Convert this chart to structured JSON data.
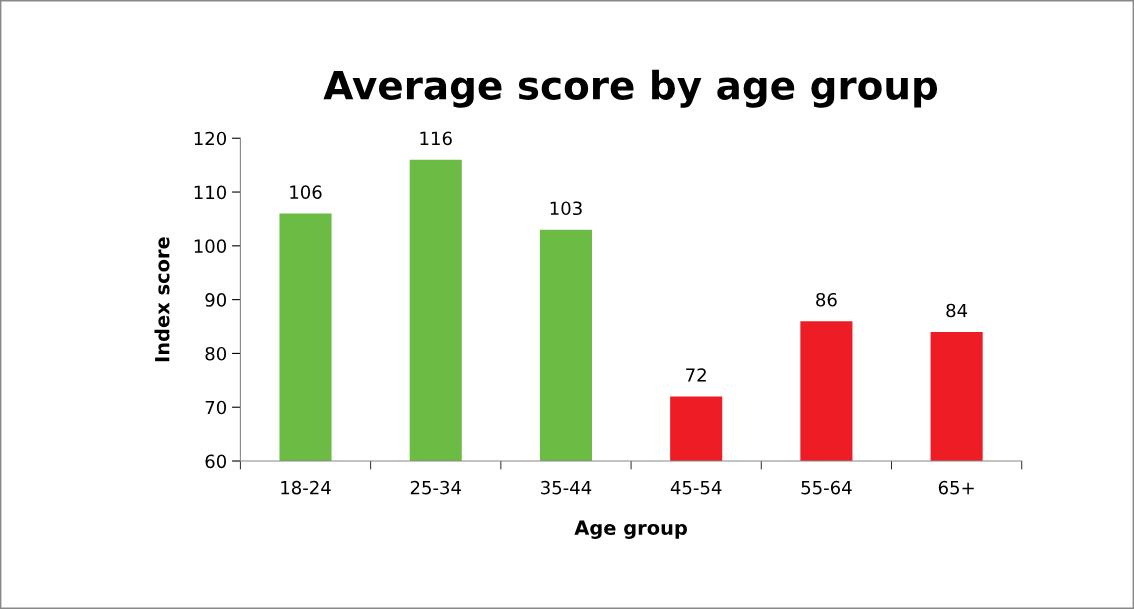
{
  "chart_data": {
    "type": "bar",
    "title": "Average score by age group",
    "xlabel": "Age group",
    "ylabel": "Index score",
    "categories": [
      "18-24",
      "25-34",
      "35-44",
      "45-54",
      "55-64",
      "65+"
    ],
    "values": [
      106,
      116,
      103,
      72,
      86,
      84
    ],
    "colors": [
      "#6cbb45",
      "#6cbb45",
      "#6cbb45",
      "#ee1c25",
      "#ee1c25",
      "#ee1c25"
    ],
    "ylim": [
      60,
      120
    ],
    "yticks": [
      60,
      70,
      80,
      90,
      100,
      110,
      120
    ],
    "grid": false,
    "data_labels": true
  }
}
